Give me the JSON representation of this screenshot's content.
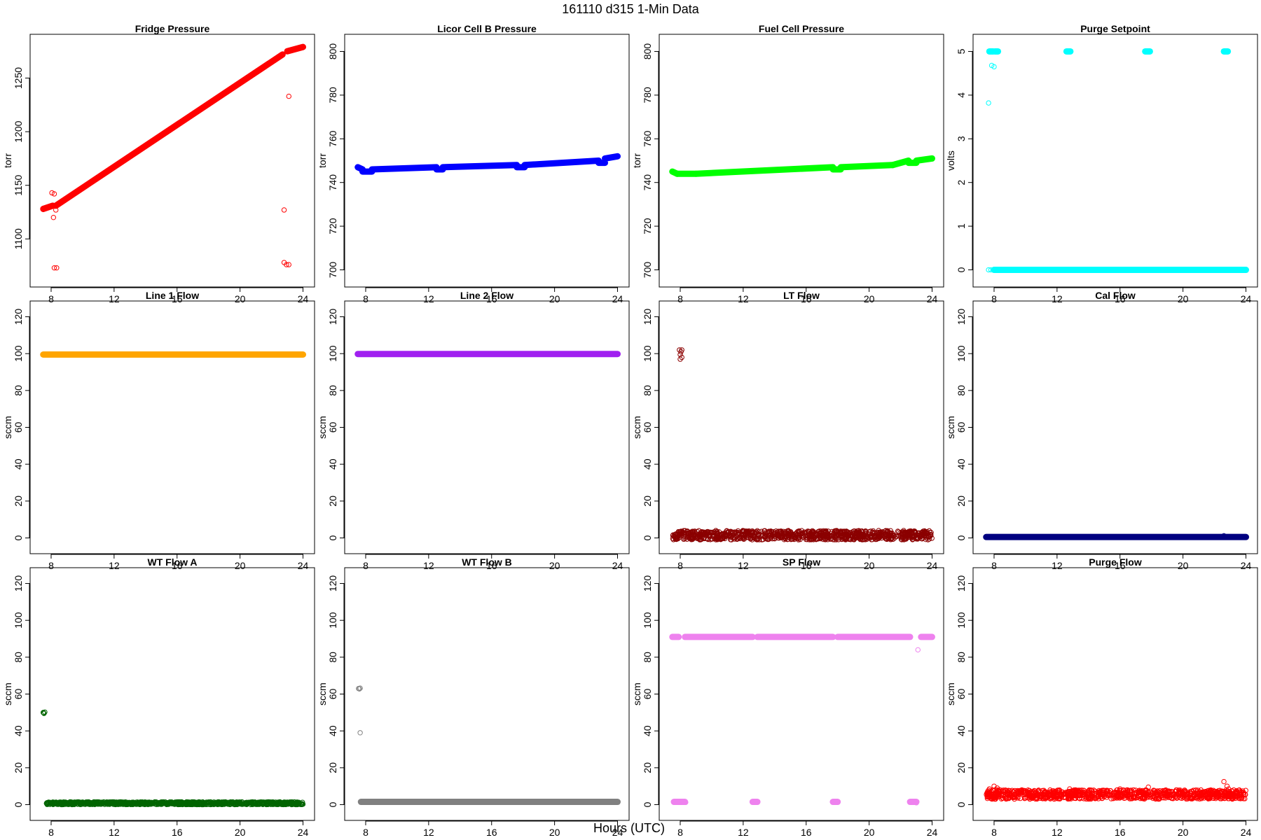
{
  "figure": {
    "title": "161110    d315    1-Min Data",
    "xlabel": "Hours (UTC)"
  },
  "chart_data": [
    {
      "type": "scatter",
      "title": "Fridge Pressure",
      "ylabel": "torr",
      "xlabel": "",
      "color": "#ff0000",
      "xlim": [
        7.2,
        24.2
      ],
      "ylim": [
        1063,
        1283
      ],
      "xticks": [
        8,
        12,
        16,
        20,
        24
      ],
      "yticks": [
        1100,
        1150,
        1200,
        1250
      ],
      "series": [
        {
          "segments": [
            {
              "x0": 7.5,
              "y0": 1128,
              "x1": 8.1,
              "y1": 1131
            },
            {
              "x0": 8.3,
              "y0": 1131,
              "x1": 22.7,
              "y1": 1272
            },
            {
              "x0": 23.0,
              "y0": 1275,
              "x1": 24.0,
              "y1": 1279
            }
          ],
          "points": [
            {
              "x": 8.05,
              "y": 1143
            },
            {
              "x": 8.2,
              "y": 1142
            },
            {
              "x": 8.15,
              "y": 1120
            },
            {
              "x": 8.3,
              "y": 1127
            },
            {
              "x": 8.2,
              "y": 1073
            },
            {
              "x": 8.35,
              "y": 1073
            },
            {
              "x": 22.8,
              "y": 1127
            },
            {
              "x": 23.1,
              "y": 1233
            },
            {
              "x": 22.8,
              "y": 1078
            },
            {
              "x": 22.95,
              "y": 1076
            },
            {
              "x": 23.1,
              "y": 1076
            }
          ]
        }
      ]
    },
    {
      "type": "scatter",
      "title": "Licor Cell B Pressure",
      "ylabel": "torr",
      "xlabel": "",
      "color": "#0000ff",
      "xlim": [
        7.2,
        24.2
      ],
      "ylim": [
        696,
        804
      ],
      "xticks": [
        8,
        12,
        16,
        20,
        24
      ],
      "yticks": [
        700,
        720,
        740,
        760,
        780,
        800
      ],
      "series": [
        {
          "segments": [
            {
              "x0": 7.5,
              "y0": 747,
              "x1": 7.8,
              "y1": 746
            },
            {
              "x0": 7.8,
              "y0": 745,
              "x1": 8.4,
              "y1": 745
            },
            {
              "x0": 8.4,
              "y0": 746,
              "x1": 12.5,
              "y1": 747
            },
            {
              "x0": 12.5,
              "y0": 746,
              "x1": 12.9,
              "y1": 746
            },
            {
              "x0": 12.9,
              "y0": 747,
              "x1": 17.6,
              "y1": 748
            },
            {
              "x0": 17.6,
              "y0": 747,
              "x1": 18.1,
              "y1": 747
            },
            {
              "x0": 18.1,
              "y0": 748,
              "x1": 22.8,
              "y1": 750
            },
            {
              "x0": 22.8,
              "y0": 749,
              "x1": 23.2,
              "y1": 749
            },
            {
              "x0": 23.2,
              "y0": 751,
              "x1": 24.0,
              "y1": 752
            }
          ],
          "points": []
        }
      ]
    },
    {
      "type": "scatter",
      "title": "Fuel Cell Pressure",
      "ylabel": "torr",
      "xlabel": "",
      "color": "#00ff00",
      "xlim": [
        7.2,
        24.2
      ],
      "ylim": [
        696,
        804
      ],
      "xticks": [
        8,
        12,
        16,
        20,
        24
      ],
      "yticks": [
        700,
        720,
        740,
        760,
        780,
        800
      ],
      "series": [
        {
          "segments": [
            {
              "x0": 7.5,
              "y0": 745,
              "x1": 7.8,
              "y1": 744
            },
            {
              "x0": 7.8,
              "y0": 744,
              "x1": 9.0,
              "y1": 744
            },
            {
              "x0": 9.0,
              "y0": 744,
              "x1": 17.7,
              "y1": 747
            },
            {
              "x0": 17.7,
              "y0": 746,
              "x1": 18.2,
              "y1": 746
            },
            {
              "x0": 18.2,
              "y0": 747,
              "x1": 21.5,
              "y1": 748
            },
            {
              "x0": 21.5,
              "y0": 748,
              "x1": 22.5,
              "y1": 750
            },
            {
              "x0": 22.5,
              "y0": 749,
              "x1": 23.0,
              "y1": 749
            },
            {
              "x0": 23.0,
              "y0": 750,
              "x1": 24.0,
              "y1": 751
            }
          ],
          "points": []
        }
      ]
    },
    {
      "type": "scatter",
      "title": "Purge Setpoint",
      "ylabel": "volts",
      "xlabel": "",
      "color": "#00ffff",
      "xlim": [
        7.2,
        24.2
      ],
      "ylim": [
        -0.2,
        5.2
      ],
      "xticks": [
        8,
        12,
        16,
        20,
        24
      ],
      "yticks": [
        0,
        1,
        2,
        3,
        4,
        5
      ],
      "series": [
        {
          "segments": [
            {
              "x0": 8.0,
              "y0": 0,
              "x1": 24.0,
              "y1": 0
            },
            {
              "x0": 7.7,
              "y0": 5,
              "x1": 7.95,
              "y1": 5
            },
            {
              "x0": 8.05,
              "y0": 5,
              "x1": 8.25,
              "y1": 5
            },
            {
              "x0": 12.6,
              "y0": 5,
              "x1": 12.85,
              "y1": 5
            },
            {
              "x0": 17.6,
              "y0": 5,
              "x1": 17.9,
              "y1": 5
            },
            {
              "x0": 22.6,
              "y0": 5,
              "x1": 22.85,
              "y1": 5
            }
          ],
          "points": [
            {
              "x": 7.65,
              "y": 0
            },
            {
              "x": 7.8,
              "y": 0
            },
            {
              "x": 7.95,
              "y": 0
            },
            {
              "x": 7.65,
              "y": 3.82
            },
            {
              "x": 7.85,
              "y": 4.68
            },
            {
              "x": 8.0,
              "y": 4.65
            }
          ]
        }
      ]
    },
    {
      "type": "scatter",
      "title": "Line 1 Flow",
      "ylabel": "sccm",
      "xlabel": "",
      "color": "#ffa500",
      "xlim": [
        7.2,
        24.2
      ],
      "ylim": [
        -4,
        124
      ],
      "xticks": [
        8,
        12,
        16,
        20,
        24
      ],
      "yticks": [
        0,
        20,
        40,
        60,
        80,
        100,
        120
      ],
      "series": [
        {
          "segments": [
            {
              "x0": 7.5,
              "y0": 99.5,
              "x1": 24.0,
              "y1": 99.5
            }
          ],
          "points": []
        }
      ]
    },
    {
      "type": "scatter",
      "title": "Line 2 Flow",
      "ylabel": "sccm",
      "xlabel": "",
      "color": "#a020f0",
      "xlim": [
        7.2,
        24.2
      ],
      "ylim": [
        -4,
        124
      ],
      "xticks": [
        8,
        12,
        16,
        20,
        24
      ],
      "yticks": [
        0,
        20,
        40,
        60,
        80,
        100,
        120
      ],
      "series": [
        {
          "segments": [
            {
              "x0": 7.5,
              "y0": 99.8,
              "x1": 24.0,
              "y1": 99.8
            }
          ],
          "points": []
        }
      ]
    },
    {
      "type": "scatter",
      "title": "LT Flow",
      "ylabel": "sccm",
      "xlabel": "",
      "color": "#8b0000",
      "xlim": [
        7.2,
        24.2
      ],
      "ylim": [
        -4,
        124
      ],
      "xticks": [
        8,
        12,
        16,
        20,
        24
      ],
      "yticks": [
        0,
        20,
        40,
        60,
        80,
        100,
        120
      ],
      "series": [
        {
          "band": {
            "x0": 7.5,
            "x1": 24.0,
            "ymin": -1,
            "ymax": 4
          },
          "points": [
            {
              "x": 7.95,
              "y": 102
            },
            {
              "x": 8.05,
              "y": 101
            },
            {
              "x": 8.0,
              "y": 99.5
            },
            {
              "x": 8.1,
              "y": 98
            },
            {
              "x": 8.0,
              "y": 97
            },
            {
              "x": 8.1,
              "y": 102
            }
          ]
        }
      ]
    },
    {
      "type": "scatter",
      "title": "Cal Flow",
      "ylabel": "sccm",
      "xlabel": "",
      "color": "#000080",
      "xlim": [
        7.2,
        24.2
      ],
      "ylim": [
        -4,
        124
      ],
      "xticks": [
        8,
        12,
        16,
        20,
        24
      ],
      "yticks": [
        0,
        20,
        40,
        60,
        80,
        100,
        120
      ],
      "series": [
        {
          "segments": [
            {
              "x0": 7.5,
              "y0": 0.5,
              "x1": 24.0,
              "y1": 0.5
            }
          ],
          "points": [
            {
              "x": 22.6,
              "y": 1.2
            }
          ]
        }
      ]
    },
    {
      "type": "scatter",
      "title": "WT Flow A",
      "ylabel": "sccm",
      "xlabel": "",
      "color": "#006400",
      "xlim": [
        7.2,
        24.2
      ],
      "ylim": [
        -4,
        124
      ],
      "xticks": [
        8,
        12,
        16,
        20,
        24
      ],
      "yticks": [
        0,
        20,
        40,
        60,
        80,
        100,
        120
      ],
      "series": [
        {
          "band": {
            "x0": 7.7,
            "x1": 24.0,
            "ymin": 0,
            "ymax": 1.5
          },
          "points": [
            {
              "x": 7.5,
              "y": 50
            },
            {
              "x": 7.55,
              "y": 49.5
            },
            {
              "x": 7.6,
              "y": 50.2
            },
            {
              "x": 7.52,
              "y": 49.8
            }
          ]
        }
      ]
    },
    {
      "type": "scatter",
      "title": "WT Flow B",
      "ylabel": "sccm",
      "xlabel": "",
      "color": "#808080",
      "xlim": [
        7.2,
        24.2
      ],
      "ylim": [
        -4,
        124
      ],
      "xticks": [
        8,
        12,
        16,
        20,
        24
      ],
      "yticks": [
        0,
        20,
        40,
        60,
        80,
        100,
        120
      ],
      "series": [
        {
          "segments": [
            {
              "x0": 7.7,
              "y0": 1.5,
              "x1": 24.0,
              "y1": 1.5
            }
          ],
          "points": [
            {
              "x": 7.55,
              "y": 63
            },
            {
              "x": 7.65,
              "y": 63.2
            },
            {
              "x": 7.6,
              "y": 62.8
            },
            {
              "x": 7.65,
              "y": 39
            }
          ]
        }
      ]
    },
    {
      "type": "scatter",
      "title": "SP Flow",
      "ylabel": "sccm",
      "xlabel": "",
      "color": "#ee82ee",
      "xlim": [
        7.2,
        24.2
      ],
      "ylim": [
        -4,
        124
      ],
      "xticks": [
        8,
        12,
        16,
        20,
        24
      ],
      "yticks": [
        0,
        20,
        40,
        60,
        80,
        100,
        120
      ],
      "series": [
        {
          "segments": [
            {
              "x0": 7.5,
              "y0": 91,
              "x1": 7.9,
              "y1": 91
            },
            {
              "x0": 8.3,
              "y0": 91,
              "x1": 12.6,
              "y1": 91
            },
            {
              "x0": 12.9,
              "y0": 91,
              "x1": 17.7,
              "y1": 91
            },
            {
              "x0": 18.0,
              "y0": 91,
              "x1": 22.6,
              "y1": 91
            },
            {
              "x0": 23.3,
              "y0": 91,
              "x1": 24.0,
              "y1": 91
            },
            {
              "x0": 7.6,
              "y0": 1.5,
              "x1": 8.3,
              "y1": 1.5
            },
            {
              "x0": 12.6,
              "y0": 1.5,
              "x1": 12.9,
              "y1": 1.5
            },
            {
              "x0": 17.7,
              "y0": 1.5,
              "x1": 18.0,
              "y1": 1.5
            },
            {
              "x0": 22.6,
              "y0": 1.5,
              "x1": 23.0,
              "y1": 1.5
            }
          ],
          "points": [
            {
              "x": 8.35,
              "y": 1.2
            },
            {
              "x": 23.0,
              "y": 1.0
            },
            {
              "x": 23.1,
              "y": 84
            }
          ]
        }
      ]
    },
    {
      "type": "scatter",
      "title": "Purge Flow",
      "ylabel": "sccm",
      "xlabel": "",
      "color": "#ff0000",
      "xlim": [
        7.2,
        24.2
      ],
      "ylim": [
        -4,
        124
      ],
      "xticks": [
        8,
        12,
        16,
        20,
        24
      ],
      "yticks": [
        0,
        20,
        40,
        60,
        80,
        100,
        120
      ],
      "series": [
        {
          "band": {
            "x0": 7.5,
            "x1": 24.0,
            "ymin": 3,
            "ymax": 8
          },
          "points": [
            {
              "x": 7.7,
              "y": 8.5
            },
            {
              "x": 8.0,
              "y": 10
            },
            {
              "x": 8.2,
              "y": 9
            },
            {
              "x": 8.3,
              "y": 7.5
            },
            {
              "x": 17.8,
              "y": 9.5
            },
            {
              "x": 22.6,
              "y": 12.5
            },
            {
              "x": 22.8,
              "y": 10
            },
            {
              "x": 22.9,
              "y": 8.5
            },
            {
              "x": 23.1,
              "y": 7.5
            },
            {
              "x": 23.3,
              "y": 6.5
            },
            {
              "x": 12.8,
              "y": 8.5
            },
            {
              "x": 16.0,
              "y": 8.5
            }
          ]
        }
      ]
    }
  ]
}
